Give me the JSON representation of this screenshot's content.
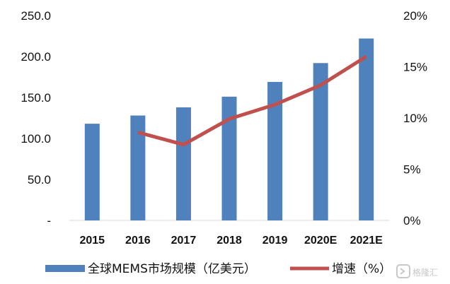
{
  "chart_data": {
    "type": "bar",
    "categories": [
      "2015",
      "2016",
      "2017",
      "2018",
      "2019",
      "2020E",
      "2021E"
    ],
    "series": [
      {
        "name": "全球MEMS市场规模（亿美元）",
        "type": "bar",
        "axis": "left",
        "color": "#4F81BD",
        "values": [
          118,
          128,
          138,
          151,
          169,
          192,
          222
        ]
      },
      {
        "name": "增速（%）",
        "type": "line",
        "axis": "right",
        "color": "#C0504D",
        "values": [
          null,
          8.6,
          7.4,
          9.9,
          11.3,
          13.2,
          16.0
        ]
      }
    ],
    "y_left": {
      "range": [
        0,
        250
      ],
      "ticks": [
        "-",
        "50.0",
        "100.0",
        "150.0",
        "200.0",
        "250.0"
      ]
    },
    "y_right": {
      "range": [
        0,
        20
      ],
      "ticks": [
        "0%",
        "5%",
        "10%",
        "15%",
        "20%"
      ]
    },
    "grid": false,
    "legend": "bottom"
  },
  "watermark": {
    "text": "格隆汇",
    "icon": "logo-icon"
  }
}
